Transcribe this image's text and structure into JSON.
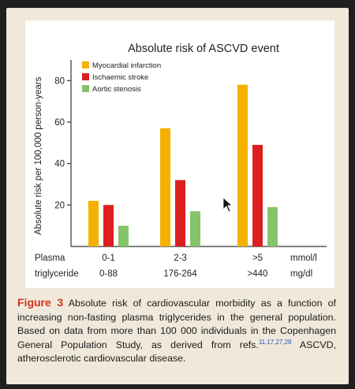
{
  "chart_data": {
    "type": "bar",
    "title": "Absolute risk of ASCVD event",
    "ylabel": "Absolute risk per 100,000 person-years",
    "ylim": [
      0,
      90
    ],
    "yticks": [
      20,
      40,
      60,
      80
    ],
    "categories": [
      "0-1",
      "2-3",
      ">5"
    ],
    "series": [
      {
        "name": "Myocardial infarction",
        "color": "#f5b100",
        "values": [
          22,
          57,
          78
        ]
      },
      {
        "name": "Ischaemic stroke",
        "color": "#dd1f1f",
        "values": [
          20,
          32,
          49
        ]
      },
      {
        "name": "Aortic stenosis",
        "color": "#86c46a",
        "values": [
          10,
          17,
          19
        ]
      }
    ],
    "legend_position": "top-left",
    "x_axis": {
      "row_label_1": "Plasma",
      "row_label_2": "triglyceride",
      "mmol_values": [
        "0-1",
        "2-3",
        ">5"
      ],
      "mgdl_values": [
        "0-88",
        "176-264",
        ">440"
      ],
      "unit_1": "mmol/l",
      "unit_2": "mg/dl"
    }
  },
  "caption": {
    "figure_label": "Figure 3",
    "text_1": " Absolute risk of cardiovascular morbidity as a function of increasing non-fasting plasma triglycerides in the general population. Based on data from more than 100 000 individuals in the Copenhagen General Population Study, as derived from refs.",
    "refs": "11,17,27,28",
    "text_2": " ASCVD, atherosclerotic cardiovascular disease."
  }
}
